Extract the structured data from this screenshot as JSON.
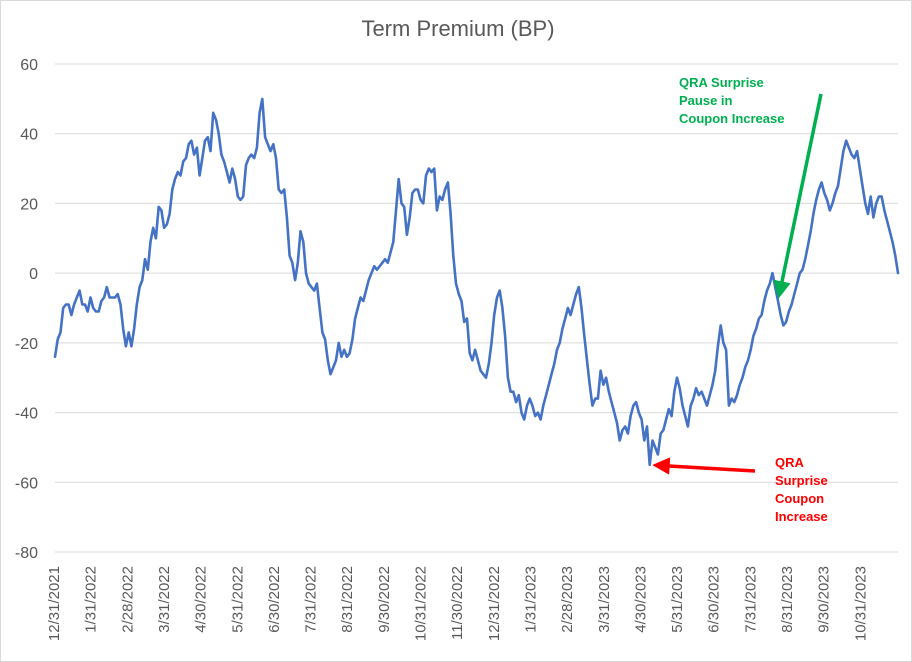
{
  "chart_data": {
    "type": "line",
    "title": "Term Premium (BP)",
    "xlabel": "",
    "ylabel": "",
    "ylim": [
      -80,
      60
    ],
    "yticks": [
      60,
      40,
      20,
      0,
      -20,
      -40,
      -60,
      -80
    ],
    "grid": "horizontal",
    "legend": "none",
    "line_color": "#4472c4",
    "x_tick_labels": [
      "12/31/2021",
      "1/31/2022",
      "2/28/2022",
      "3/31/2022",
      "4/30/2022",
      "5/31/2022",
      "6/30/2022",
      "7/31/2022",
      "8/31/2022",
      "9/30/2022",
      "10/31/2022",
      "11/30/2022",
      "12/31/2022",
      "1/31/2023",
      "2/28/2023",
      "3/31/2023",
      "4/30/2023",
      "5/31/2023",
      "6/30/2023",
      "7/31/2023",
      "8/31/2023",
      "9/30/2023",
      "10/31/2023"
    ],
    "series": [
      {
        "values": [
          -24,
          -19,
          -17,
          -10,
          -9,
          -9,
          -12,
          -9,
          -7,
          -5,
          -9,
          -9,
          -11,
          -7,
          -10,
          -11,
          -11,
          -8,
          -7,
          -4,
          -7,
          -7,
          -7,
          -6,
          -9,
          -16,
          -21,
          -17,
          -21,
          -16,
          -9,
          -4,
          -2,
          4,
          1,
          9,
          13,
          10,
          19,
          18,
          13,
          14,
          17,
          24,
          27,
          29,
          28,
          32,
          33,
          37,
          38,
          34,
          36,
          28,
          33,
          38,
          39,
          35,
          46,
          44,
          40,
          34,
          32,
          29,
          26,
          30,
          27,
          22,
          21,
          22,
          31,
          33,
          34,
          33,
          36,
          46,
          50,
          39,
          37,
          35,
          37,
          33,
          24,
          23,
          24,
          16,
          5,
          3,
          -2,
          3,
          12,
          9,
          0,
          -3,
          -4,
          -5,
          -3,
          -10,
          -17,
          -19,
          -25,
          -29,
          -27,
          -25,
          -20,
          -24,
          -22,
          -24,
          -23,
          -19,
          -13,
          -10,
          -7,
          -8,
          -5,
          -2,
          0,
          2,
          1,
          2,
          3,
          4,
          3,
          6,
          9,
          18,
          27,
          20,
          19,
          11,
          16,
          23,
          24,
          24,
          21,
          20,
          28,
          30,
          29,
          30,
          18,
          22,
          21,
          24,
          26,
          17,
          5,
          -3,
          -6,
          -8,
          -14,
          -13,
          -23,
          -25,
          -22,
          -25,
          -28,
          -29,
          -30,
          -26,
          -20,
          -12,
          -7,
          -5,
          -10,
          -18,
          -30,
          -34,
          -34,
          -37,
          -35,
          -40,
          -42,
          -38,
          -36,
          -38,
          -41,
          -40,
          -42,
          -38,
          -35,
          -32,
          -29,
          -26,
          -22,
          -20,
          -16,
          -13,
          -10,
          -12,
          -9,
          -6,
          -4,
          -10,
          -18,
          -25,
          -32,
          -38,
          -36,
          -36,
          -28,
          -32,
          -30,
          -34,
          -37,
          -40,
          -43,
          -48,
          -45,
          -44,
          -46,
          -41,
          -38,
          -37,
          -40,
          -42,
          -48,
          -44,
          -55,
          -48,
          -50,
          -52,
          -46,
          -45,
          -42,
          -39,
          -41,
          -34,
          -30,
          -33,
          -38,
          -41,
          -44,
          -38,
          -36,
          -33,
          -35,
          -34,
          -36,
          -38,
          -35,
          -32,
          -28,
          -21,
          -15,
          -20,
          -22,
          -38,
          -36,
          -37,
          -35,
          -32,
          -30,
          -27,
          -25,
          -22,
          -18,
          -16,
          -13,
          -12,
          -8,
          -5,
          -3,
          0,
          -4,
          -8,
          -12,
          -15,
          -14,
          -11,
          -9,
          -6,
          -3,
          0,
          1,
          4,
          8,
          12,
          17,
          21,
          24,
          26,
          23,
          21,
          18,
          20,
          23,
          25,
          30,
          35,
          38,
          36,
          34,
          33,
          35,
          30,
          25,
          20,
          17,
          22,
          16,
          20,
          22,
          22,
          18,
          15,
          12,
          9,
          5,
          0
        ]
      }
    ],
    "annotations": [
      {
        "lines": [
          "QRA Surprise",
          "Pause in",
          "Coupon Increase"
        ],
        "color": "#00b050",
        "target_index": 265
      },
      {
        "lines": [
          "QRA",
          "Surprise",
          "Coupon",
          "Increase"
        ],
        "color": "#ff0000",
        "target_index": 218
      }
    ]
  }
}
